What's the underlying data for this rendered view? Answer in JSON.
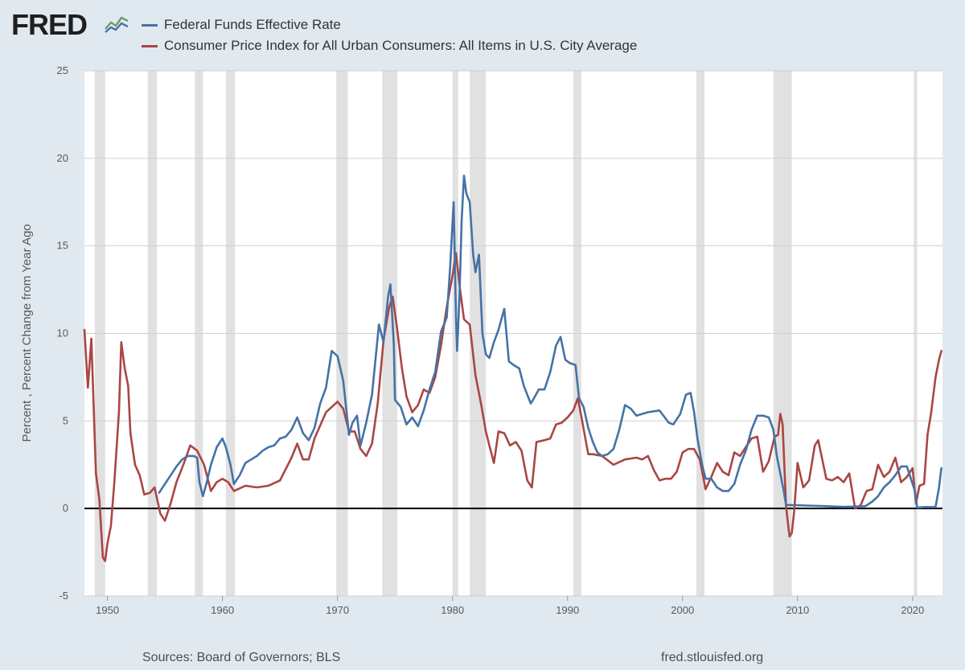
{
  "brand": {
    "logo_text": "FRED",
    "logo_icon": "line-chart-icon"
  },
  "footer": {
    "sources": "Sources: Board of Governors; BLS",
    "site": "fred.stlouisfed.org"
  },
  "colors": {
    "background": "#e1e9f0",
    "plot_background": "#ffffff",
    "recession": "#e1e1e1",
    "series_ffr": "#4572a7",
    "series_cpi": "#aa4643",
    "zero_line": "#000000"
  },
  "chart_data": {
    "type": "line",
    "title": "",
    "xlabel": "",
    "ylabel": "Percent , Percent Change from Year Ago",
    "xlim": [
      1948.0,
      2022.6
    ],
    "ylim": [
      -5,
      25
    ],
    "x_ticks": [
      1950,
      1960,
      1970,
      1980,
      1990,
      2000,
      2010,
      2020
    ],
    "x_tick_labels": [
      "1950",
      "1960",
      "1970",
      "1980",
      "1990",
      "2000",
      "2010",
      "2020"
    ],
    "y_ticks": [
      -5,
      0,
      5,
      10,
      15,
      20,
      25
    ],
    "y_tick_labels": [
      "-5",
      "0",
      "5",
      "10",
      "15",
      "20",
      "25"
    ],
    "grid": "horizontal",
    "legend_position": "top-left",
    "recessions": [
      [
        1948.9,
        1949.8
      ],
      [
        1953.5,
        1954.3
      ],
      [
        1957.6,
        1958.3
      ],
      [
        1960.3,
        1961.1
      ],
      [
        1969.9,
        1970.9
      ],
      [
        1973.9,
        1975.2
      ],
      [
        1980.0,
        1980.5
      ],
      [
        1981.5,
        1982.9
      ],
      [
        1990.5,
        1991.2
      ],
      [
        2001.2,
        2001.9
      ],
      [
        2007.9,
        2009.5
      ],
      [
        2020.1,
        2020.4
      ]
    ],
    "series": [
      {
        "name": "Federal Funds Effective Rate",
        "color": "#4572a7",
        "x": [
          1954.5,
          1955.0,
          1955.5,
          1956.0,
          1956.5,
          1957.0,
          1957.5,
          1957.8,
          1958.0,
          1958.3,
          1958.6,
          1959.0,
          1959.5,
          1960.0,
          1960.3,
          1960.7,
          1961.0,
          1961.5,
          1962.0,
          1962.5,
          1963.0,
          1963.5,
          1964.0,
          1964.5,
          1965.0,
          1965.5,
          1966.0,
          1966.5,
          1967.0,
          1967.5,
          1968.0,
          1968.5,
          1969.0,
          1969.5,
          1970.0,
          1970.5,
          1971.0,
          1971.3,
          1971.7,
          1972.0,
          1972.5,
          1973.0,
          1973.3,
          1973.6,
          1974.0,
          1974.4,
          1974.6,
          1974.9,
          1975.0,
          1975.5,
          1976.0,
          1976.5,
          1977.0,
          1977.5,
          1978.0,
          1978.5,
          1979.0,
          1979.5,
          1979.8,
          1980.1,
          1980.3,
          1980.4,
          1980.6,
          1980.8,
          1981.0,
          1981.2,
          1981.5,
          1981.8,
          1982.0,
          1982.3,
          1982.6,
          1982.9,
          1983.2,
          1983.6,
          1984.0,
          1984.5,
          1984.9,
          1985.3,
          1985.8,
          1986.2,
          1986.5,
          1986.8,
          1987.0,
          1987.5,
          1988.0,
          1988.5,
          1989.0,
          1989.4,
          1989.8,
          1990.2,
          1990.7,
          1991.0,
          1991.4,
          1991.8,
          1992.2,
          1992.6,
          1993.0,
          1993.5,
          1994.0,
          1994.5,
          1995.0,
          1995.5,
          1996.0,
          1996.5,
          1997.0,
          1998.0,
          1998.8,
          1999.2,
          1999.8,
          2000.3,
          2000.7,
          2001.0,
          2001.3,
          2001.7,
          2002.0,
          2002.5,
          2003.0,
          2003.5,
          2004.0,
          2004.5,
          2005.0,
          2005.5,
          2006.0,
          2006.5,
          2007.0,
          2007.5,
          2007.9,
          2008.2,
          2008.5,
          2008.8,
          2009.0,
          2010.0,
          2012.0,
          2014.0,
          2015.9,
          2016.5,
          2017.0,
          2017.5,
          2018.0,
          2018.5,
          2019.0,
          2019.5,
          2019.9,
          2020.2,
          2020.4,
          2021.0,
          2022.0,
          2022.3,
          2022.5
        ],
        "values": [
          0.9,
          1.4,
          1.9,
          2.4,
          2.8,
          3.0,
          3.0,
          2.9,
          1.5,
          0.7,
          1.4,
          2.5,
          3.5,
          4.0,
          3.5,
          2.5,
          1.4,
          1.9,
          2.6,
          2.8,
          3.0,
          3.3,
          3.5,
          3.6,
          4.0,
          4.1,
          4.5,
          5.2,
          4.3,
          3.9,
          4.6,
          6.0,
          6.9,
          9.0,
          8.7,
          7.3,
          4.2,
          4.9,
          5.3,
          3.6,
          4.9,
          6.5,
          8.5,
          10.5,
          9.5,
          12.1,
          12.8,
          9.4,
          6.2,
          5.8,
          4.8,
          5.2,
          4.7,
          5.6,
          6.8,
          7.8,
          10.1,
          10.9,
          13.8,
          17.5,
          11.0,
          9.0,
          12.0,
          16.5,
          19.0,
          18.0,
          17.5,
          14.5,
          13.5,
          14.5,
          10.0,
          8.8,
          8.6,
          9.5,
          10.2,
          11.4,
          8.4,
          8.2,
          8.0,
          7.0,
          6.5,
          6.0,
          6.2,
          6.8,
          6.8,
          7.8,
          9.3,
          9.8,
          8.5,
          8.3,
          8.2,
          6.3,
          5.8,
          4.6,
          3.8,
          3.2,
          3.0,
          3.1,
          3.4,
          4.5,
          5.9,
          5.7,
          5.3,
          5.4,
          5.5,
          5.6,
          4.9,
          4.8,
          5.4,
          6.5,
          6.6,
          5.5,
          4.0,
          2.5,
          1.7,
          1.7,
          1.2,
          1.0,
          1.0,
          1.4,
          2.5,
          3.3,
          4.5,
          5.3,
          5.3,
          5.2,
          4.5,
          3.0,
          2.0,
          1.0,
          0.2,
          0.18,
          0.14,
          0.09,
          0.13,
          0.4,
          0.7,
          1.2,
          1.5,
          1.9,
          2.4,
          2.4,
          1.6,
          1.0,
          0.05,
          0.08,
          0.08,
          1.2,
          2.3
        ]
      },
      {
        "name": "Consumer Price Index for All Urban Consumers: All Items in U.S. City Average",
        "color": "#aa4643",
        "x": [
          1948.0,
          1948.3,
          1948.6,
          1949.0,
          1949.3,
          1949.6,
          1949.8,
          1950.0,
          1950.3,
          1950.6,
          1951.0,
          1951.2,
          1951.5,
          1951.8,
          1952.0,
          1952.4,
          1952.8,
          1953.2,
          1953.7,
          1954.1,
          1954.6,
          1955.0,
          1955.5,
          1956.0,
          1956.6,
          1957.2,
          1957.8,
          1958.4,
          1959.0,
          1959.5,
          1960.0,
          1960.5,
          1961.0,
          1962.0,
          1963.0,
          1964.0,
          1965.0,
          1966.0,
          1966.5,
          1967.0,
          1967.5,
          1968.0,
          1969.0,
          1970.0,
          1970.5,
          1971.0,
          1971.5,
          1972.0,
          1972.5,
          1973.0,
          1973.5,
          1974.0,
          1974.5,
          1974.8,
          1975.2,
          1975.6,
          1976.0,
          1976.5,
          1977.0,
          1977.5,
          1978.0,
          1978.5,
          1979.0,
          1979.5,
          1980.0,
          1980.3,
          1980.6,
          1981.0,
          1981.5,
          1982.0,
          1982.5,
          1982.9,
          1983.2,
          1983.6,
          1984.0,
          1984.5,
          1985.0,
          1985.5,
          1986.0,
          1986.5,
          1986.9,
          1987.3,
          1988.0,
          1988.5,
          1989.0,
          1989.5,
          1990.0,
          1990.5,
          1990.9,
          1991.3,
          1991.8,
          1992.2,
          1993.0,
          1994.0,
          1995.0,
          1996.0,
          1996.5,
          1997.0,
          1997.5,
          1998.0,
          1998.5,
          1999.0,
          1999.5,
          2000.0,
          2000.5,
          2001.0,
          2001.5,
          2002.0,
          2002.5,
          2003.0,
          2003.5,
          2004.0,
          2004.5,
          2005.0,
          2005.5,
          2006.0,
          2006.5,
          2007.0,
          2007.5,
          2008.0,
          2008.3,
          2008.5,
          2008.7,
          2009.0,
          2009.3,
          2009.5,
          2009.7,
          2010.0,
          2010.5,
          2011.0,
          2011.5,
          2011.8,
          2012.5,
          2013.0,
          2013.5,
          2014.0,
          2014.5,
          2015.0,
          2015.5,
          2016.0,
          2016.5,
          2017.0,
          2017.5,
          2018.0,
          2018.5,
          2019.0,
          2019.5,
          2020.0,
          2020.3,
          2020.6,
          2021.0,
          2021.3,
          2021.6,
          2022.0,
          2022.3,
          2022.5
        ],
        "values": [
          10.2,
          6.9,
          9.7,
          2.0,
          0.5,
          -2.8,
          -3.0,
          -2.0,
          -1.0,
          1.5,
          5.5,
          9.5,
          8.0,
          7.0,
          4.3,
          2.5,
          1.9,
          0.8,
          0.9,
          1.2,
          -0.3,
          -0.7,
          0.3,
          1.5,
          2.5,
          3.6,
          3.3,
          2.5,
          1.0,
          1.5,
          1.7,
          1.5,
          1.0,
          1.3,
          1.2,
          1.3,
          1.6,
          2.9,
          3.7,
          2.8,
          2.8,
          4.0,
          5.5,
          6.1,
          5.7,
          4.4,
          4.4,
          3.4,
          3.0,
          3.7,
          6.0,
          9.6,
          11.5,
          12.1,
          10.2,
          8.0,
          6.4,
          5.5,
          5.9,
          6.8,
          6.6,
          7.5,
          9.3,
          11.5,
          13.3,
          14.6,
          12.8,
          10.8,
          10.5,
          7.6,
          5.9,
          4.4,
          3.6,
          2.6,
          4.4,
          4.3,
          3.6,
          3.8,
          3.3,
          1.6,
          1.2,
          3.8,
          3.9,
          4.0,
          4.8,
          4.9,
          5.2,
          5.6,
          6.3,
          4.9,
          3.1,
          3.1,
          3.0,
          2.5,
          2.8,
          2.9,
          2.8,
          3.0,
          2.2,
          1.6,
          1.7,
          1.7,
          2.1,
          3.2,
          3.4,
          3.4,
          2.8,
          1.1,
          1.8,
          2.6,
          2.1,
          1.9,
          3.2,
          3.0,
          3.5,
          4.0,
          4.1,
          2.1,
          2.7,
          4.1,
          4.2,
          5.4,
          4.8,
          0.1,
          -1.6,
          -1.4,
          -0.2,
          2.6,
          1.2,
          1.6,
          3.6,
          3.9,
          1.7,
          1.6,
          1.8,
          1.5,
          2.0,
          0.0,
          0.2,
          1.0,
          1.1,
          2.5,
          1.8,
          2.1,
          2.9,
          1.5,
          1.8,
          2.3,
          0.3,
          1.3,
          1.4,
          4.2,
          5.4,
          7.5,
          8.5,
          9.0
        ]
      }
    ]
  }
}
